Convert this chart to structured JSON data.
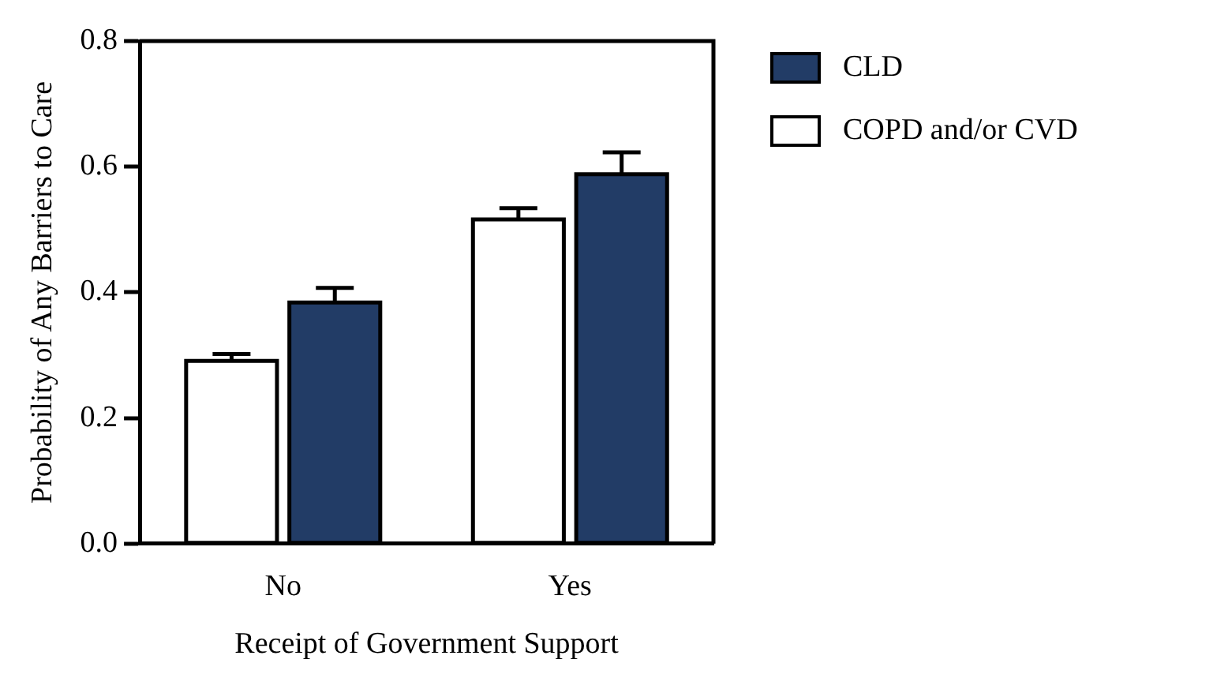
{
  "chart_data": {
    "type": "bar",
    "xlabel": "Receipt of Government Support",
    "ylabel": "Probability of Any Barriers to Care",
    "categories": [
      "No",
      "Yes"
    ],
    "series": [
      {
        "name": "COPD and/or CVD",
        "color": "#ffffff",
        "values": [
          0.291,
          0.516
        ],
        "errors": [
          [
            0.291,
            0.302
          ],
          [
            0.516,
            0.534
          ]
        ]
      },
      {
        "name": "CLD",
        "color": "#223c66",
        "values": [
          0.384,
          0.588
        ],
        "errors": [
          [
            0.384,
            0.407
          ],
          [
            0.588,
            0.623
          ]
        ]
      }
    ],
    "ylim": [
      0,
      0.8
    ],
    "yticks": [
      "0.0",
      0.2,
      0.4,
      0.6,
      0.8
    ],
    "grid": false,
    "legend": "top right"
  }
}
